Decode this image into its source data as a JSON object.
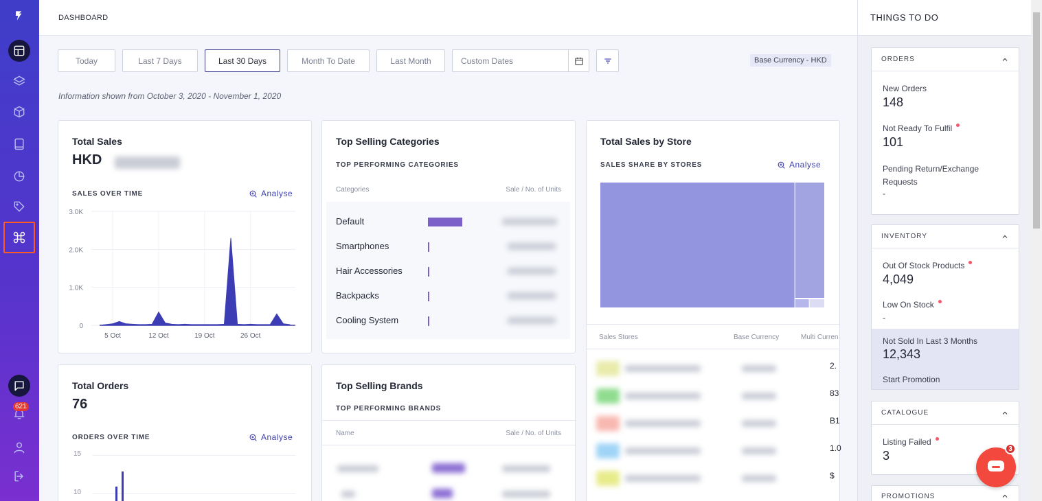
{
  "sidebar": {
    "notification_count": "621"
  },
  "header": {
    "title": "DASHBOARD"
  },
  "filters": {
    "today": "Today",
    "last7": "Last 7 Days",
    "last30": "Last 30 Days",
    "mtd": "Month To Date",
    "last_month": "Last Month",
    "custom_placeholder": "Custom Dates",
    "currency": "Base Currency - HKD"
  },
  "info_text": "Information shown from October 3, 2020 - November 1, 2020",
  "total_sales": {
    "title": "Total Sales",
    "currency": "HKD",
    "subtitle": "SALES OVER TIME",
    "analyse": "Analyse"
  },
  "top_categories": {
    "title": "Top Selling Categories",
    "subtitle": "TOP PERFORMING CATEGORIES",
    "col1": "Categories",
    "col2": "Sale / No. of Units",
    "rows": [
      {
        "name": "Default",
        "share": 1.0
      },
      {
        "name": "Smartphones",
        "share": 0.03
      },
      {
        "name": "Hair Accessories",
        "share": 0.03
      },
      {
        "name": "Backpacks",
        "share": 0.03
      },
      {
        "name": "Cooling System",
        "share": 0.03
      }
    ]
  },
  "sales_by_store": {
    "title": "Total Sales by Store",
    "subtitle": "SALES SHARE BY STORES",
    "analyse": "Analyse",
    "col1": "Sales Stores",
    "col2": "Base Currency",
    "col3": "Multi Curren",
    "partial_values": [
      "2.",
      "83",
      "B1",
      "1.0",
      "$"
    ],
    "row_colors": [
      "#e8ebaa",
      "#8fdc8f",
      "#f8b8b0",
      "#9fd4f6",
      "#e8eb8a"
    ]
  },
  "total_orders": {
    "title": "Total Orders",
    "value": "76",
    "subtitle": "ORDERS OVER TIME",
    "analyse": "Analyse",
    "y_ticks": [
      "15",
      "10"
    ]
  },
  "top_brands": {
    "title": "Top Selling Brands",
    "subtitle": "TOP PERFORMING BRANDS",
    "col1": "Name",
    "col2": "Sale / No. of Units"
  },
  "todo": {
    "title": "THINGS TO DO",
    "orders": {
      "header": "ORDERS",
      "new_label": "New Orders",
      "new_value": "148",
      "not_ready_label": "Not Ready To Fulfil",
      "not_ready_value": "101",
      "pending_label": "Pending Return/Exchange Requests",
      "pending_value": "-"
    },
    "inventory": {
      "header": "INVENTORY",
      "oos_label": "Out Of Stock Products",
      "oos_value": "4,049",
      "low_label": "Low On Stock",
      "low_value": "-",
      "notsold_label": "Not Sold In Last 3 Months",
      "notsold_value": "12,343",
      "promo_label": "Start Promotion"
    },
    "catalogue": {
      "header": "CATALOGUE",
      "failed_label": "Listing Failed",
      "failed_value": "3"
    },
    "promotions": {
      "header": "PROMOTIONS"
    }
  },
  "chat": {
    "count": "3"
  },
  "chart_data": [
    {
      "type": "area",
      "title": "SALES OVER TIME",
      "x": [
        "3 Oct",
        "4 Oct",
        "5 Oct",
        "6 Oct",
        "7 Oct",
        "8 Oct",
        "9 Oct",
        "10 Oct",
        "11 Oct",
        "12 Oct",
        "13 Oct",
        "14 Oct",
        "15 Oct",
        "16 Oct",
        "17 Oct",
        "18 Oct",
        "19 Oct",
        "20 Oct",
        "21 Oct",
        "22 Oct",
        "23 Oct",
        "24 Oct",
        "25 Oct",
        "26 Oct",
        "27 Oct",
        "28 Oct",
        "29 Oct",
        "30 Oct",
        "31 Oct",
        "1 Nov"
      ],
      "values": [
        0,
        20,
        40,
        100,
        40,
        30,
        20,
        20,
        30,
        350,
        60,
        30,
        20,
        30,
        20,
        20,
        20,
        20,
        20,
        30,
        2300,
        30,
        20,
        30,
        20,
        20,
        20,
        300,
        40,
        20
      ],
      "x_ticks": [
        "5 Oct",
        "12 Oct",
        "19 Oct",
        "26 Oct"
      ],
      "y_ticks": [
        "0",
        "1.0K",
        "2.0K",
        "3.0K"
      ],
      "ylim": [
        0,
        3000
      ],
      "color": "#3c3cb4"
    },
    {
      "type": "treemap",
      "title": "SALES SHARE BY STORES",
      "values": [
        0.87,
        0.13
      ],
      "color": "#9395de"
    }
  ]
}
